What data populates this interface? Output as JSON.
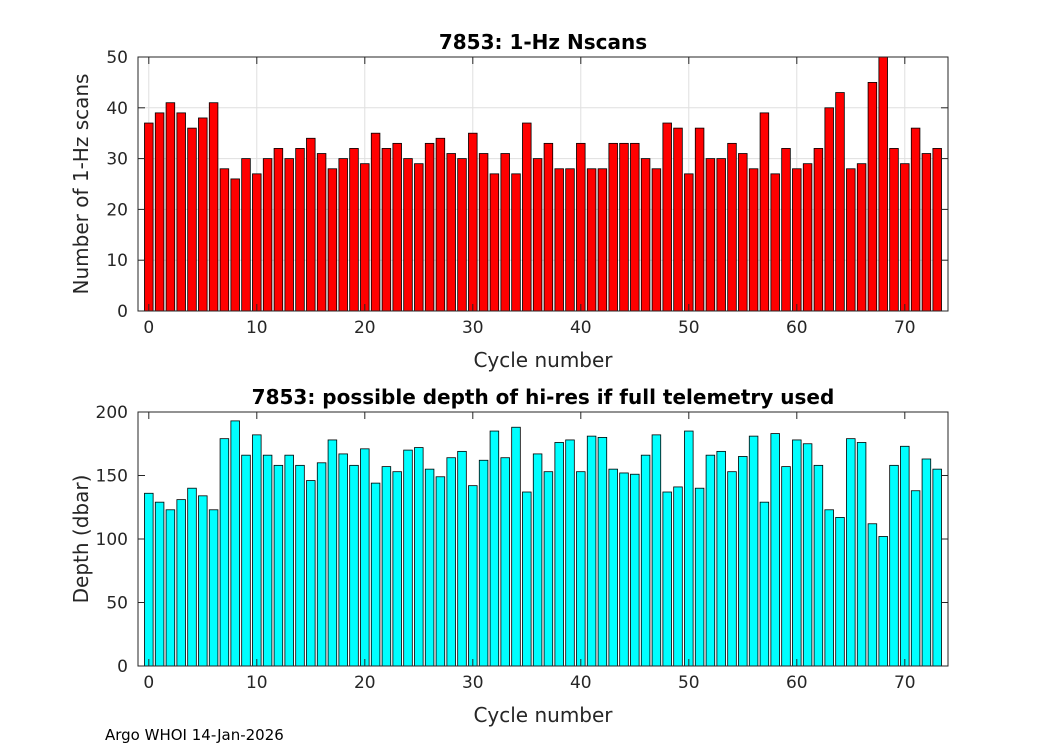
{
  "footer": {
    "text": "Argo WHOI 14-Jan-2026"
  },
  "chart_data": [
    {
      "type": "bar",
      "title": "7853: 1-Hz Nscans",
      "xlabel": "Cycle number",
      "ylabel": "Number of 1-Hz scans",
      "x": [
        0,
        1,
        2,
        3,
        4,
        5,
        6,
        7,
        8,
        9,
        10,
        11,
        12,
        13,
        14,
        15,
        16,
        17,
        18,
        19,
        20,
        21,
        22,
        23,
        24,
        25,
        26,
        27,
        28,
        29,
        30,
        31,
        32,
        33,
        34,
        35,
        36,
        37,
        38,
        39,
        40,
        41,
        42,
        43,
        44,
        45,
        46,
        47,
        48,
        49,
        50,
        51,
        52,
        53,
        54,
        55,
        56,
        57,
        58,
        59,
        60,
        61,
        62,
        63,
        64,
        65,
        66,
        67,
        68,
        69,
        70,
        71,
        72,
        73
      ],
      "values": [
        37,
        39,
        41,
        39,
        36,
        38,
        41,
        28,
        26,
        30,
        27,
        30,
        32,
        30,
        32,
        34,
        31,
        28,
        30,
        32,
        29,
        35,
        32,
        33,
        30,
        29,
        33,
        34,
        31,
        30,
        35,
        31,
        27,
        31,
        27,
        37,
        30,
        33,
        28,
        28,
        33,
        28,
        28,
        33,
        33,
        33,
        30,
        28,
        37,
        36,
        27,
        36,
        30,
        30,
        33,
        31,
        28,
        39,
        27,
        32,
        28,
        29,
        32,
        40,
        43,
        28,
        29,
        45,
        50,
        32,
        29,
        36,
        31,
        32
      ],
      "xlim": [
        -1,
        74
      ],
      "ylim": [
        0,
        50
      ],
      "xticks": [
        "0",
        "10",
        "20",
        "30",
        "40",
        "50",
        "60",
        "70"
      ],
      "yticks": [
        "0",
        "10",
        "20",
        "30",
        "40",
        "50"
      ],
      "grid": true,
      "bar_color": "#ff0000"
    },
    {
      "type": "bar",
      "title": "7853: possible depth of hi-res if full telemetry used",
      "xlabel": "Cycle number",
      "ylabel": "Depth (dbar)",
      "x": [
        0,
        1,
        2,
        3,
        4,
        5,
        6,
        7,
        8,
        9,
        10,
        11,
        12,
        13,
        14,
        15,
        16,
        17,
        18,
        19,
        20,
        21,
        22,
        23,
        24,
        25,
        26,
        27,
        28,
        29,
        30,
        31,
        32,
        33,
        34,
        35,
        36,
        37,
        38,
        39,
        40,
        41,
        42,
        43,
        44,
        45,
        46,
        47,
        48,
        49,
        50,
        51,
        52,
        53,
        54,
        55,
        56,
        57,
        58,
        59,
        60,
        61,
        62,
        63,
        64,
        65,
        66,
        67,
        68,
        69,
        70,
        71,
        72,
        73
      ],
      "values": [
        136,
        129,
        123,
        131,
        140,
        134,
        123,
        179,
        193,
        166,
        182,
        166,
        158,
        166,
        158,
        146,
        160,
        178,
        167,
        158,
        171,
        144,
        157,
        153,
        170,
        172,
        155,
        149,
        164,
        169,
        142,
        162,
        185,
        164,
        188,
        137,
        167,
        153,
        176,
        178,
        153,
        181,
        180,
        155,
        152,
        151,
        166,
        182,
        137,
        141,
        185,
        140,
        166,
        169,
        153,
        165,
        181,
        129,
        183,
        157,
        178,
        175,
        158,
        123,
        117,
        179,
        176,
        112,
        102,
        158,
        173,
        138,
        163,
        155
      ],
      "xlim": [
        -1,
        74
      ],
      "ylim": [
        0,
        200
      ],
      "xticks": [
        "0",
        "10",
        "20",
        "30",
        "40",
        "50",
        "60",
        "70"
      ],
      "yticks": [
        "0",
        "50",
        "100",
        "150",
        "200"
      ],
      "grid": false,
      "bar_color": "#00ffff"
    }
  ]
}
